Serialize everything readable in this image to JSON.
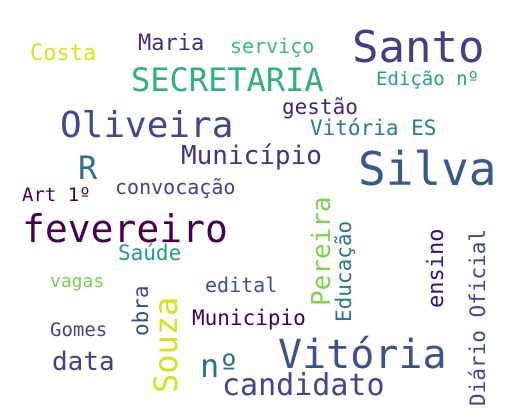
{
  "wordcloud": {
    "words": {
      "santo": "Santo",
      "silva": "Silva",
      "secretaria": "SECRETARIA",
      "oliveira": "Oliveira",
      "fevereiro": "fevereiro",
      "vitoria_big": "Vitória",
      "candidato": "candidato",
      "municipio1": "Município",
      "maria": "Maria",
      "servico": "serviço",
      "costa": "Costa",
      "edicao": "Edição nº",
      "gestao": "gestão",
      "vitoria_es": "Vitória ES",
      "r": "R",
      "convocacao": "convocação",
      "art": "Art 1º",
      "saude": "Saúde",
      "vagas": "vagas",
      "edital": "edital",
      "municipio2": "Municipio",
      "gomes": "Gomes",
      "data": "data",
      "no_big": "nº",
      "souza": "Souza",
      "obra": "obra",
      "pereira": "Pereira",
      "educacao": "Educação",
      "ensino": "ensino",
      "diario": "Diário Oficial"
    }
  }
}
